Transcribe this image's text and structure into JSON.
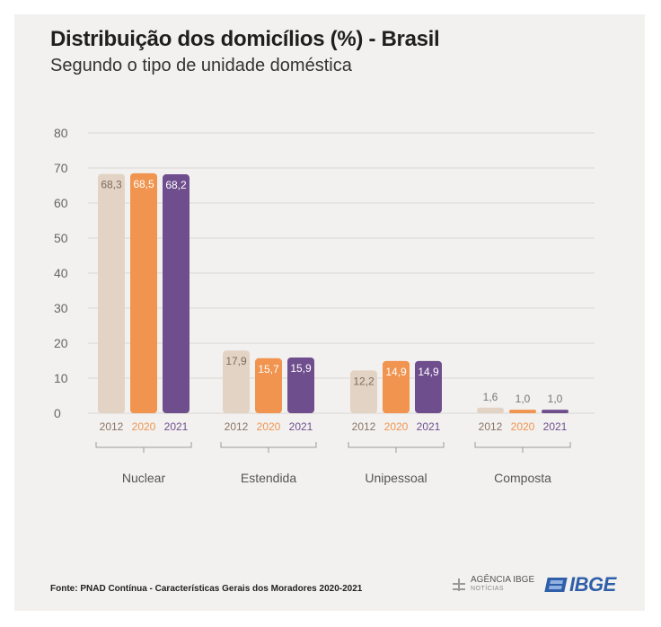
{
  "chart_data": {
    "type": "bar",
    "title": "Distribuição dos domicílios (%) - Brasil",
    "subtitle": "Segundo o tipo de unidade doméstica",
    "categories": [
      "Nuclear",
      "Estendida",
      "Unipessoal",
      "Composta"
    ],
    "series": [
      {
        "name": "2012",
        "color": "#e3d3c5",
        "values": [
          68.3,
          17.9,
          12.2,
          1.6
        ],
        "labels": [
          "68,3",
          "17,9",
          "12,2",
          "1,6"
        ]
      },
      {
        "name": "2020",
        "color": "#f0944f",
        "values": [
          68.5,
          15.7,
          14.9,
          1.0
        ],
        "labels": [
          "68,5",
          "15,7",
          "14,9",
          "1,0"
        ]
      },
      {
        "name": "2021",
        "color": "#6f4e8e",
        "values": [
          68.2,
          15.9,
          14.9,
          1.0
        ],
        "labels": [
          "68,2",
          "15,9",
          "14,9",
          "1,0"
        ]
      }
    ],
    "ylim": [
      0,
      80
    ],
    "yticks": [
      0,
      10,
      20,
      30,
      40,
      50,
      60,
      70,
      80
    ],
    "grid": true,
    "legend": "none"
  },
  "footer": {
    "source": "Fonte: PNAD Contínua - Características Gerais dos Moradores 2020-2021",
    "agencia": "AGÊNCIA IBGE",
    "agencia_sub": "NOTÍCIAS",
    "ibge": "IBGE"
  }
}
